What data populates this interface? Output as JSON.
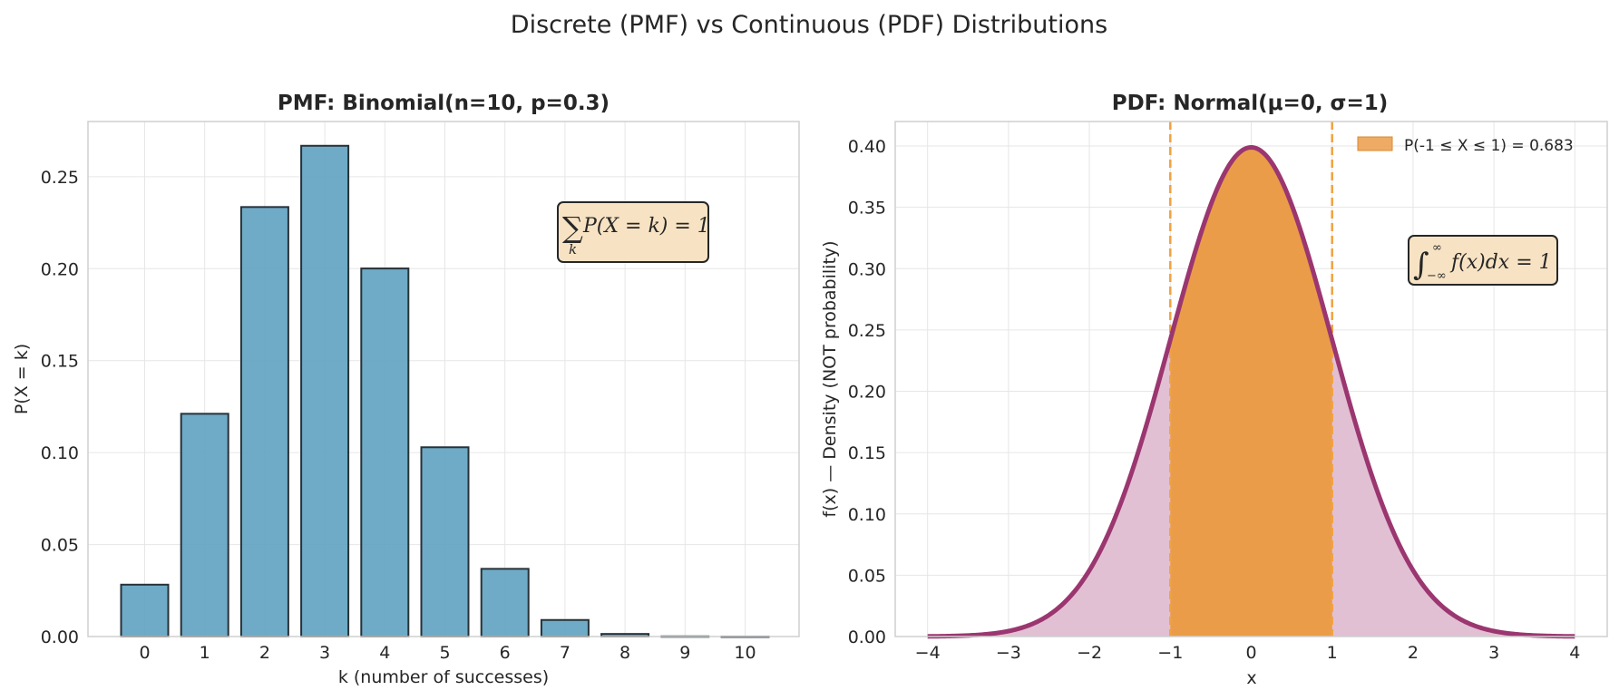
{
  "figure": {
    "title": "Discrete (PMF) vs Continuous (PDF) Distributions"
  },
  "chart_data": [
    {
      "type": "bar",
      "title": "PMF: Binomial(n=10, p=0.3)",
      "xlabel": "k (number of successes)",
      "ylabel": "P(X = k)",
      "categories": [
        "0",
        "1",
        "2",
        "3",
        "4",
        "5",
        "6",
        "7",
        "8",
        "9",
        "10"
      ],
      "values": [
        0.0282,
        0.1211,
        0.2335,
        0.2668,
        0.2001,
        0.1029,
        0.0368,
        0.009,
        0.0014,
        0.0001,
        0.0
      ],
      "ylim": [
        0,
        0.28
      ],
      "yticks": [
        "0.00",
        "0.05",
        "0.10",
        "0.15",
        "0.20",
        "0.25"
      ],
      "grid": true,
      "color": "#5fa2c0",
      "annotation": {
        "sum_symbol": "∑",
        "subscript": "k",
        "expression": "P(X = k) = 1",
        "position": "top-right"
      }
    },
    {
      "type": "area",
      "title": "PDF: Normal(μ=0, σ=1)",
      "xlabel": "x",
      "ylabel": "f(x) — Density (NOT probability)",
      "mu": 0,
      "sigma": 1,
      "xlim": [
        -4.4,
        4.4
      ],
      "ylim": [
        0,
        0.42
      ],
      "xticks": [
        "−4",
        "−3",
        "−2",
        "−1",
        "0",
        "1",
        "2",
        "3",
        "4"
      ],
      "yticks": [
        "0.00",
        "0.05",
        "0.10",
        "0.15",
        "0.20",
        "0.25",
        "0.30",
        "0.35",
        "0.40"
      ],
      "curve_range": [
        -4,
        4
      ],
      "peak_density": 0.399,
      "shaded_interval": [
        -1,
        1
      ],
      "grid": true,
      "curve_color": "#9b3670",
      "fill_color": "#e2c0d3",
      "highlight_color": "#eb9c48",
      "boundary_color": "#f0a240",
      "legend": {
        "label": "P(-1 ≤ X ≤ 1) = 0.683",
        "position": "top-right"
      },
      "annotation": {
        "integral_symbol": "∫",
        "upper": "∞",
        "lower": "−∞",
        "expression": "f(x)dx = 1",
        "position": "right"
      }
    }
  ]
}
